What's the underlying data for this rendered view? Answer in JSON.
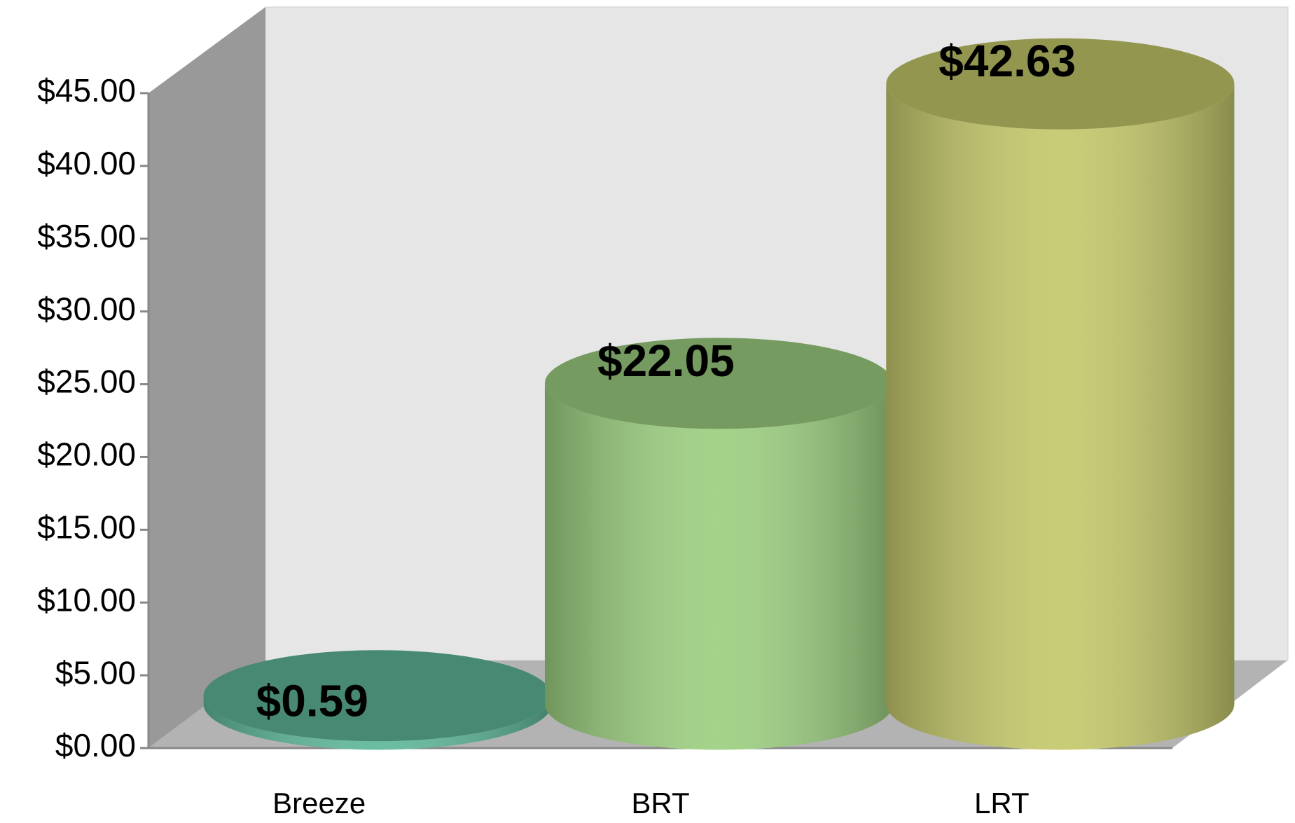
{
  "chart_data": {
    "type": "bar",
    "categories": [
      "Breeze",
      "BRT",
      "LRT"
    ],
    "values": [
      0.59,
      22.05,
      42.63
    ],
    "value_labels": [
      "$0.59",
      "$22.05",
      "$42.63"
    ],
    "colors": [
      "#5fb79a",
      "#9ccf80",
      "#c4c86a"
    ],
    "ylim": [
      0,
      45
    ],
    "yticks": [
      {
        "value": 0,
        "label": "$0.00"
      },
      {
        "value": 5,
        "label": "$5.00"
      },
      {
        "value": 10,
        "label": "$10.00"
      },
      {
        "value": 15,
        "label": "$15.00"
      },
      {
        "value": 20,
        "label": "$20.00"
      },
      {
        "value": 25,
        "label": "$25.00"
      },
      {
        "value": 30,
        "label": "$30.00"
      },
      {
        "value": 35,
        "label": "$35.00"
      },
      {
        "value": 40,
        "label": "$40.00"
      },
      {
        "value": 45,
        "label": "$45.00"
      }
    ]
  }
}
